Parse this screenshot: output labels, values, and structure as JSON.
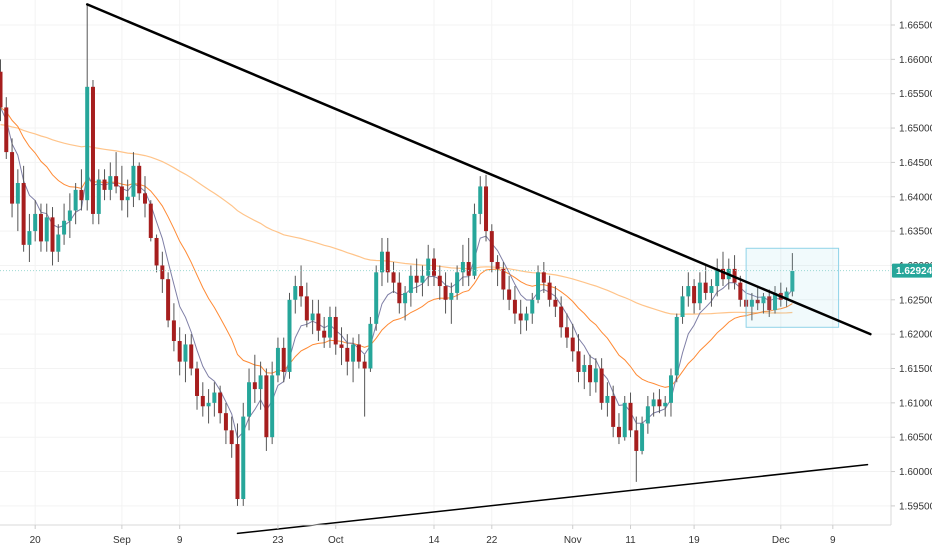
{
  "chart_data": {
    "type": "candlestick",
    "title": "",
    "xlabel": "",
    "ylabel": "",
    "ylim": [
      1.5925,
      1.6695
    ],
    "y_ticks": [
      "1.66500",
      "1.66000",
      "1.65500",
      "1.65000",
      "1.64500",
      "1.64000",
      "1.63500",
      "1.63000",
      "1.62500",
      "1.62000",
      "1.61500",
      "1.61000",
      "1.60500",
      "1.60000",
      "1.59500"
    ],
    "x_ticks": [
      "20",
      "Sep",
      "9",
      "23",
      "Oct",
      "14",
      "22",
      "Nov",
      "11",
      "19",
      "Dec",
      "9"
    ],
    "last_price": "1.62924",
    "grid": true,
    "colors": {
      "up": "#26a69a",
      "down": "#a61e1e",
      "ma_fast": "#7f7fa6",
      "ma_mid": "#ff8a34",
      "ma_slow": "#ffc48a",
      "trendline": "#000000",
      "box": "#8fd3e8",
      "price_line": "#9fd9d2",
      "price_badge": "#26a69a"
    },
    "candles": [
      [
        1.6582,
        1.66,
        1.651,
        1.653
      ],
      [
        1.653,
        1.6545,
        1.6455,
        1.6465
      ],
      [
        1.6465,
        1.6485,
        1.637,
        1.639
      ],
      [
        1.639,
        1.644,
        1.635,
        1.642
      ],
      [
        1.642,
        1.6445,
        1.632,
        1.633
      ],
      [
        1.633,
        1.6375,
        1.6305,
        1.635
      ],
      [
        1.635,
        1.6395,
        1.6335,
        1.6375
      ],
      [
        1.6375,
        1.639,
        1.632,
        1.6335
      ],
      [
        1.6335,
        1.639,
        1.632,
        1.637
      ],
      [
        1.637,
        1.6385,
        1.63,
        1.632
      ],
      [
        1.632,
        1.636,
        1.6305,
        1.6345
      ],
      [
        1.6345,
        1.639,
        1.633,
        1.6365
      ],
      [
        1.6365,
        1.6405,
        1.634,
        1.638
      ],
      [
        1.638,
        1.642,
        1.636,
        1.641
      ],
      [
        1.641,
        1.644,
        1.638,
        1.6395
      ],
      [
        1.6395,
        1.668,
        1.638,
        1.656
      ],
      [
        1.656,
        1.657,
        1.636,
        1.6375
      ],
      [
        1.6375,
        1.644,
        1.636,
        1.6425
      ],
      [
        1.6425,
        1.644,
        1.6395,
        1.641
      ],
      [
        1.641,
        1.645,
        1.6395,
        1.643
      ],
      [
        1.643,
        1.6465,
        1.6405,
        1.6415
      ],
      [
        1.6415,
        1.6445,
        1.638,
        1.6395
      ],
      [
        1.6395,
        1.6425,
        1.637,
        1.64
      ],
      [
        1.64,
        1.6465,
        1.6385,
        1.6445
      ],
      [
        1.6445,
        1.645,
        1.6395,
        1.6405
      ],
      [
        1.6405,
        1.643,
        1.637,
        1.639
      ],
      [
        1.639,
        1.6395,
        1.6335,
        1.634
      ],
      [
        1.634,
        1.6345,
        1.629,
        1.63
      ],
      [
        1.63,
        1.632,
        1.626,
        1.628
      ],
      [
        1.628,
        1.629,
        1.621,
        1.622
      ],
      [
        1.622,
        1.6245,
        1.6175,
        1.619
      ],
      [
        1.619,
        1.621,
        1.614,
        1.616
      ],
      [
        1.616,
        1.62,
        1.613,
        1.6185
      ],
      [
        1.6185,
        1.62,
        1.614,
        1.615
      ],
      [
        1.615,
        1.616,
        1.609,
        1.611
      ],
      [
        1.611,
        1.613,
        1.608,
        1.6095
      ],
      [
        1.6095,
        1.612,
        1.607,
        1.61
      ],
      [
        1.61,
        1.613,
        1.608,
        1.6115
      ],
      [
        1.6115,
        1.6125,
        1.607,
        1.6085
      ],
      [
        1.6085,
        1.61,
        1.604,
        1.606
      ],
      [
        1.606,
        1.608,
        1.602,
        1.604
      ],
      [
        1.604,
        1.607,
        1.595,
        1.596
      ],
      [
        1.596,
        1.61,
        1.595,
        1.608
      ],
      [
        1.608,
        1.615,
        1.606,
        1.613
      ],
      [
        1.613,
        1.617,
        1.61,
        1.612
      ],
      [
        1.612,
        1.616,
        1.609,
        1.614
      ],
      [
        1.614,
        1.615,
        1.603,
        1.605
      ],
      [
        1.605,
        1.616,
        1.604,
        1.614
      ],
      [
        1.614,
        1.6195,
        1.613,
        1.618
      ],
      [
        1.618,
        1.6195,
        1.613,
        1.6145
      ],
      [
        1.6145,
        1.626,
        1.6135,
        1.625
      ],
      [
        1.625,
        1.6285,
        1.623,
        1.627
      ],
      [
        1.627,
        1.63,
        1.624,
        1.6255
      ],
      [
        1.6255,
        1.6275,
        1.621,
        1.622
      ],
      [
        1.622,
        1.625,
        1.62,
        1.623
      ],
      [
        1.623,
        1.625,
        1.619,
        1.6205
      ],
      [
        1.6205,
        1.6225,
        1.618,
        1.6195
      ],
      [
        1.6195,
        1.624,
        1.618,
        1.6225
      ],
      [
        1.6225,
        1.624,
        1.617,
        1.6185
      ],
      [
        1.6185,
        1.621,
        1.6155,
        1.618
      ],
      [
        1.618,
        1.62,
        1.614,
        1.616
      ],
      [
        1.616,
        1.6195,
        1.613,
        1.6185
      ],
      [
        1.6185,
        1.62,
        1.615,
        1.616
      ],
      [
        1.616,
        1.617,
        1.608,
        1.615
      ],
      [
        1.615,
        1.6225,
        1.6145,
        1.6215
      ],
      [
        1.6215,
        1.63,
        1.6205,
        1.629
      ],
      [
        1.629,
        1.634,
        1.627,
        1.632
      ],
      [
        1.632,
        1.634,
        1.6275,
        1.629
      ],
      [
        1.629,
        1.6305,
        1.626,
        1.6275
      ],
      [
        1.6275,
        1.629,
        1.623,
        1.6245
      ],
      [
        1.6245,
        1.627,
        1.622,
        1.626
      ],
      [
        1.626,
        1.63,
        1.624,
        1.6285
      ],
      [
        1.6285,
        1.631,
        1.626,
        1.6275
      ],
      [
        1.6275,
        1.63,
        1.6255,
        1.6285
      ],
      [
        1.6285,
        1.633,
        1.627,
        1.631
      ],
      [
        1.631,
        1.6325,
        1.627,
        1.6285
      ],
      [
        1.6285,
        1.63,
        1.625,
        1.627
      ],
      [
        1.627,
        1.629,
        1.623,
        1.625
      ],
      [
        1.625,
        1.6275,
        1.6215,
        1.626
      ],
      [
        1.626,
        1.63,
        1.625,
        1.629
      ],
      [
        1.629,
        1.633,
        1.627,
        1.6305
      ],
      [
        1.6305,
        1.634,
        1.627,
        1.6285
      ],
      [
        1.6285,
        1.639,
        1.628,
        1.6375
      ],
      [
        1.6375,
        1.643,
        1.636,
        1.6415
      ],
      [
        1.6415,
        1.6432,
        1.6335,
        1.635
      ],
      [
        1.635,
        1.636,
        1.629,
        1.6305
      ],
      [
        1.6305,
        1.6315,
        1.627,
        1.6295
      ],
      [
        1.6295,
        1.6305,
        1.625,
        1.6265
      ],
      [
        1.6265,
        1.6285,
        1.6235,
        1.625
      ],
      [
        1.625,
        1.627,
        1.6215,
        1.623
      ],
      [
        1.623,
        1.625,
        1.62,
        1.622
      ],
      [
        1.622,
        1.624,
        1.6205,
        1.623
      ],
      [
        1.623,
        1.626,
        1.6215,
        1.625
      ],
      [
        1.625,
        1.63,
        1.6245,
        1.629
      ],
      [
        1.629,
        1.6305,
        1.626,
        1.6275
      ],
      [
        1.6275,
        1.6285,
        1.624,
        1.625
      ],
      [
        1.625,
        1.627,
        1.6225,
        1.624
      ],
      [
        1.624,
        1.6255,
        1.6195,
        1.621
      ],
      [
        1.621,
        1.623,
        1.618,
        1.6195
      ],
      [
        1.6195,
        1.6215,
        1.616,
        1.6175
      ],
      [
        1.6175,
        1.62,
        1.613,
        1.6145
      ],
      [
        1.6145,
        1.617,
        1.612,
        1.6155
      ],
      [
        1.6155,
        1.617,
        1.611,
        1.613
      ],
      [
        1.613,
        1.6165,
        1.6115,
        1.615
      ],
      [
        1.615,
        1.6165,
        1.609,
        1.61
      ],
      [
        1.61,
        1.613,
        1.608,
        1.611
      ],
      [
        1.611,
        1.6125,
        1.605,
        1.6065
      ],
      [
        1.6065,
        1.6085,
        1.604,
        1.605
      ],
      [
        1.605,
        1.611,
        1.6045,
        1.61
      ],
      [
        1.61,
        1.6115,
        1.605,
        1.606
      ],
      [
        1.606,
        1.608,
        1.5985,
        1.603
      ],
      [
        1.603,
        1.608,
        1.6025,
        1.607
      ],
      [
        1.607,
        1.611,
        1.6055,
        1.6095
      ],
      [
        1.6095,
        1.6115,
        1.608,
        1.6105
      ],
      [
        1.6105,
        1.612,
        1.6085,
        1.6095
      ],
      [
        1.6095,
        1.611,
        1.608,
        1.61
      ],
      [
        1.61,
        1.615,
        1.608,
        1.614
      ],
      [
        1.614,
        1.623,
        1.613,
        1.6225
      ],
      [
        1.6225,
        1.627,
        1.6215,
        1.6255
      ],
      [
        1.6255,
        1.629,
        1.624,
        1.627
      ],
      [
        1.627,
        1.628,
        1.623,
        1.6245
      ],
      [
        1.6245,
        1.629,
        1.6235,
        1.6275
      ],
      [
        1.6275,
        1.63,
        1.625,
        1.626
      ],
      [
        1.626,
        1.628,
        1.624,
        1.627
      ],
      [
        1.627,
        1.631,
        1.6255,
        1.6295
      ],
      [
        1.6295,
        1.632,
        1.627,
        1.628
      ],
      [
        1.628,
        1.631,
        1.6265,
        1.6295
      ],
      [
        1.6295,
        1.6315,
        1.6265,
        1.6275
      ],
      [
        1.6275,
        1.6285,
        1.624,
        1.625
      ],
      [
        1.625,
        1.6265,
        1.6225,
        1.624
      ],
      [
        1.624,
        1.626,
        1.622,
        1.625
      ],
      [
        1.625,
        1.627,
        1.6235,
        1.6245
      ],
      [
        1.6245,
        1.626,
        1.623,
        1.6255
      ],
      [
        1.6255,
        1.6265,
        1.6225,
        1.6235
      ],
      [
        1.6235,
        1.627,
        1.623,
        1.626
      ],
      [
        1.626,
        1.6275,
        1.624,
        1.625
      ],
      [
        1.625,
        1.6268,
        1.624,
        1.6262
      ],
      [
        1.6262,
        1.6318,
        1.6255,
        1.6292
      ]
    ],
    "annotations": {
      "descending_trendline": {
        "from": [
          15,
          1.668
        ],
        "to": [
          150.5,
          1.62
        ]
      },
      "rising_trendline": {
        "from": [
          41,
          1.591
        ],
        "to": [
          150,
          1.601
        ]
      },
      "consolidation_box": {
        "x_range": [
          129,
          145
        ],
        "y_range": [
          1.621,
          1.6325
        ]
      },
      "last_price_line": 1.62924
    }
  }
}
